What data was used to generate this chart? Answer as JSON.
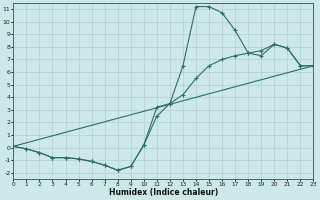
{
  "xlabel": "Humidex (Indice chaleur)",
  "bg_color": "#cce8e8",
  "grid_color": "#adc8c8",
  "line_color": "#2a7068",
  "xlim": [
    0,
    23
  ],
  "ylim": [
    -2.5,
    11.5
  ],
  "xticks": [
    0,
    1,
    2,
    3,
    4,
    5,
    6,
    7,
    8,
    9,
    10,
    11,
    12,
    13,
    14,
    15,
    16,
    17,
    18,
    19,
    20,
    21,
    22,
    23
  ],
  "yticks": [
    -2,
    -1,
    0,
    1,
    2,
    3,
    4,
    5,
    6,
    7,
    8,
    9,
    10,
    11
  ],
  "curve1_x": [
    0,
    1,
    2,
    3,
    4,
    5,
    6,
    7,
    8,
    9,
    10,
    11,
    12,
    13,
    14,
    15,
    16,
    17,
    18,
    19,
    20,
    21,
    22,
    23
  ],
  "curve1_y": [
    0.1,
    -0.1,
    -0.4,
    -0.8,
    -0.8,
    -0.9,
    -1.1,
    -1.4,
    -1.8,
    -1.5,
    0.2,
    3.2,
    3.5,
    6.5,
    11.2,
    11.2,
    10.7,
    9.3,
    7.5,
    7.3,
    8.2,
    7.9,
    6.5,
    6.5
  ],
  "curve2_x": [
    0,
    1,
    2,
    3,
    4,
    5,
    6,
    7,
    8,
    9,
    10,
    11,
    12,
    13,
    14,
    15,
    16,
    17,
    18,
    19,
    20,
    21,
    22,
    23
  ],
  "curve2_y": [
    0.1,
    -0.1,
    -0.4,
    -0.8,
    -0.8,
    -0.9,
    -1.1,
    -1.4,
    -1.8,
    -1.5,
    0.2,
    2.5,
    3.5,
    4.2,
    5.5,
    6.5,
    7.0,
    7.3,
    7.5,
    7.7,
    8.2,
    7.9,
    6.5,
    6.5
  ],
  "line3_x": [
    0,
    23
  ],
  "line3_y": [
    0.1,
    6.5
  ]
}
